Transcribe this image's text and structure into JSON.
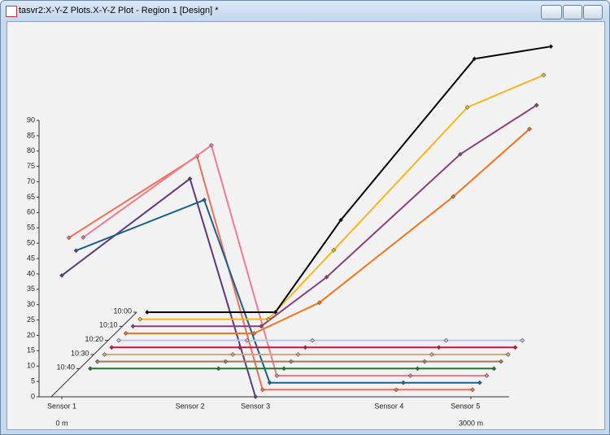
{
  "window_title": "tasvr2:X-Y-Z Plots.X-Y-Z Plot - Region 1 [Design] *",
  "chart_data": {
    "type": "line",
    "categories": [
      "Sensor 1",
      "Sensor 2",
      "Sensor 3",
      "Sensor 4",
      "Sensor 5"
    ],
    "x": [
      0,
      940,
      1420,
      2400,
      2960
    ],
    "xlim": [
      0,
      3280
    ],
    "xticks": [
      {
        "value": 0,
        "label": "0 m"
      },
      {
        "value": 3000,
        "label": "3000 m"
      }
    ],
    "ylim": [
      0,
      90
    ],
    "yticks": [
      0,
      5,
      10,
      15,
      20,
      25,
      30,
      35,
      40,
      45,
      50,
      55,
      60,
      65,
      70,
      75,
      80,
      85,
      90
    ],
    "z_categories": [
      null,
      null,
      null,
      null,
      "10:40",
      null,
      "10:30",
      null,
      "10:20",
      null,
      "10:10",
      null,
      "10:00"
    ],
    "series": [
      {
        "color": "#5b3a7e",
        "values": [
          39.5,
          71,
          0,
          null,
          null
        ]
      },
      {
        "color": "#f26e55",
        "values": [
          49.5,
          76,
          0,
          0,
          0
        ]
      },
      {
        "color": "#1b5f8c",
        "values": [
          43,
          59.5,
          0,
          0,
          0
        ]
      },
      {
        "color": "#f27a8e",
        "values": [
          45,
          75,
          0,
          0,
          0
        ]
      },
      {
        "color": "#1d7a2c",
        "values": [
          0,
          0,
          0,
          0,
          0
        ]
      },
      {
        "color": "#a07a62",
        "values": [
          0,
          0,
          0,
          0,
          0
        ]
      },
      {
        "color": "#d4aa7a",
        "values": [
          0,
          0,
          0,
          0,
          0
        ]
      },
      {
        "color": "#c4163e",
        "values": [
          0,
          0,
          0,
          0,
          0
        ]
      },
      {
        "color": "#b9c8e0",
        "values": [
          0,
          0,
          0,
          0,
          0
        ]
      },
      {
        "color": "#f7731a",
        "values": [
          0,
          0,
          10,
          44.5,
          66.5
        ]
      },
      {
        "color": "#8b3f7e",
        "values": [
          0,
          0,
          16,
          56,
          72
        ]
      },
      {
        "color": "#fbb519",
        "values": [
          0,
          0,
          22.5,
          69,
          79.5
        ]
      },
      {
        "color": "#000000",
        "values": [
          0,
          0,
          30,
          82.5,
          86.5
        ]
      }
    ]
  }
}
